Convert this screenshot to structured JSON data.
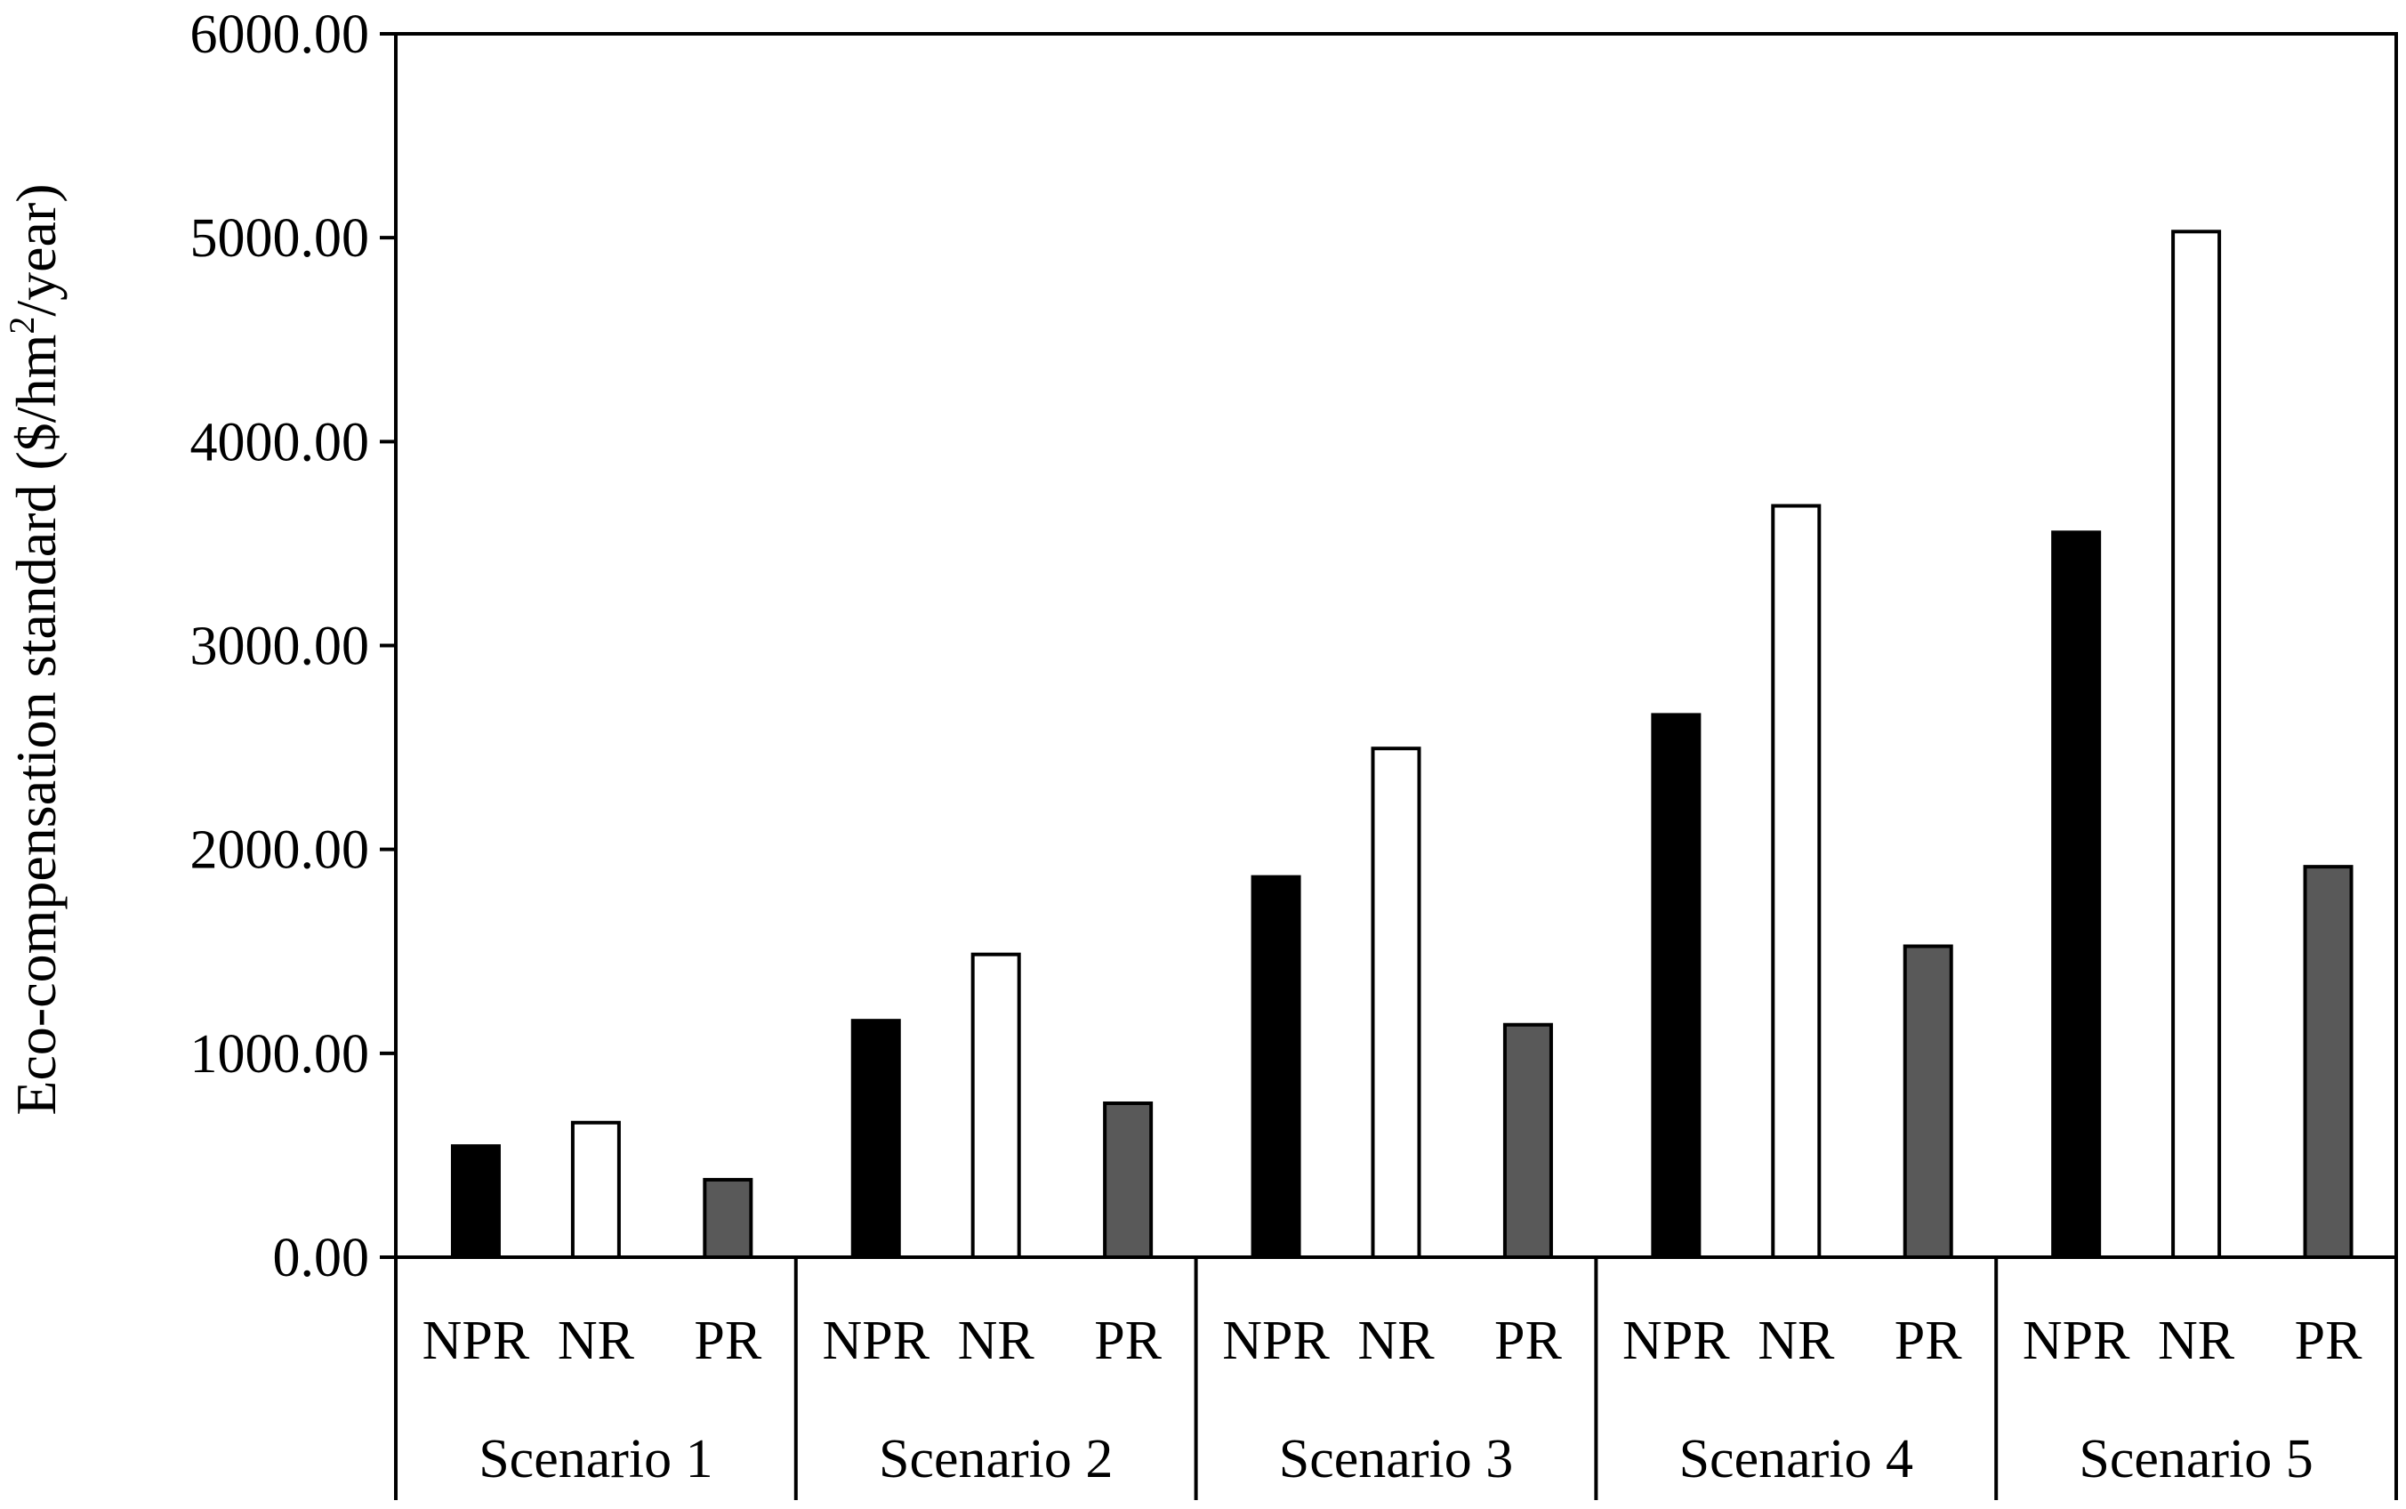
{
  "chart_data": {
    "type": "bar",
    "title": "",
    "ylabel": {
      "main": "Eco-compensation standard ($/hm",
      "superscript": "2",
      "tail": "/year)"
    },
    "ylim": [
      0,
      6000
    ],
    "yticks": [
      "0.00",
      "1000.00",
      "2000.00",
      "3000.00",
      "4000.00",
      "5000.00",
      "6000.00"
    ],
    "ytick_values": [
      0,
      1000,
      2000,
      3000,
      4000,
      5000,
      6000
    ],
    "grid": false,
    "legend": "none",
    "categories": [
      "NPR",
      "NR",
      "PR"
    ],
    "groups": [
      "Scenario 1",
      "Scenario 2",
      "Scenario 3",
      "Scenario 4",
      "Scenario 5"
    ],
    "series_colors": {
      "NPR": "#000000",
      "NR": "#ffffff",
      "PR": "#595959"
    },
    "values": [
      [
        545,
        660,
        380
      ],
      [
        1160,
        1485,
        755
      ],
      [
        1865,
        2495,
        1140
      ],
      [
        2660,
        3685,
        1525
      ],
      [
        3555,
        5030,
        1915
      ]
    ]
  }
}
